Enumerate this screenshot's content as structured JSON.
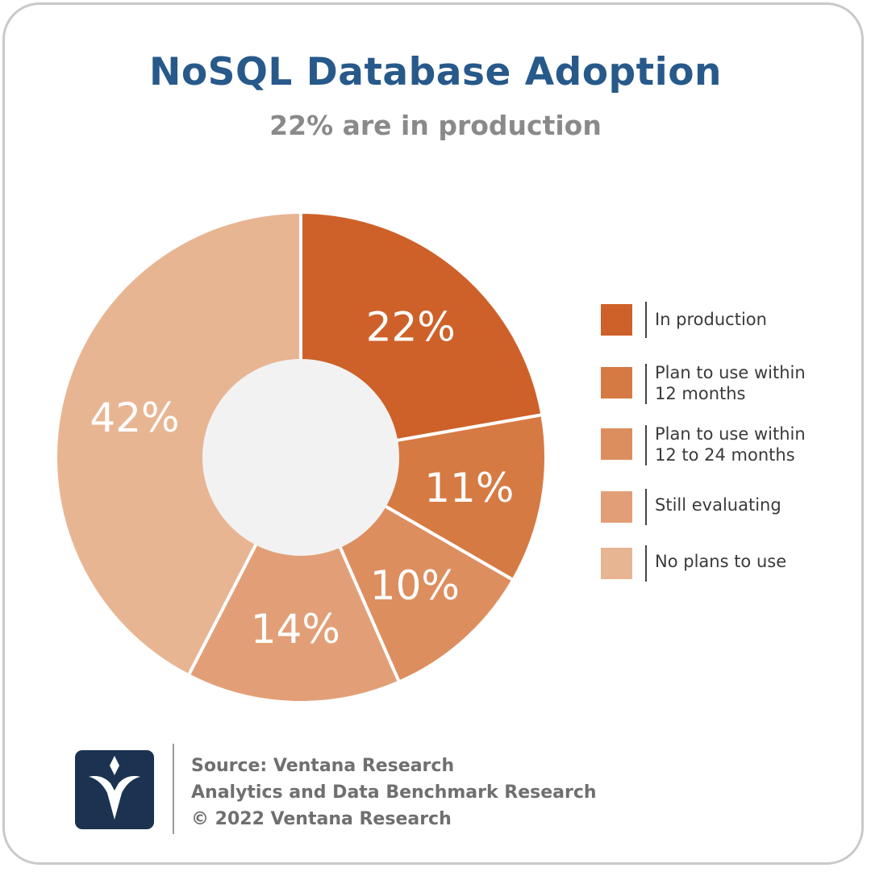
{
  "chart_data": {
    "type": "pie",
    "title": "NoSQL Database Adoption",
    "subtitle": "22% are in production",
    "categories": [
      "In production",
      "Plan to use within 12 months",
      "Plan to use within 12 to 24 months",
      "Still evaluating",
      "No plans to use"
    ],
    "values": [
      22,
      11,
      10,
      14,
      42
    ],
    "value_labels": [
      "22%",
      "11%",
      "10%",
      "14%",
      "42%"
    ],
    "colors": [
      "#ce6129",
      "#d67a43",
      "#dd8e5f",
      "#e29f77",
      "#e8b593"
    ],
    "legend_placement": "right",
    "donut": true
  },
  "legend": {
    "items": [
      {
        "line1": "In production",
        "line2": ""
      },
      {
        "line1": "Plan to use within",
        "line2": "12 months"
      },
      {
        "line1": "Plan to use within",
        "line2": "12 to 24 months"
      },
      {
        "line1": "Still evaluating",
        "line2": ""
      },
      {
        "line1": "No plans to use",
        "line2": ""
      }
    ]
  },
  "footer": {
    "source": "Source: Ventana Research",
    "study": "Analytics and Data Benchmark Research",
    "copyright": "© 2022 Ventana Research"
  }
}
